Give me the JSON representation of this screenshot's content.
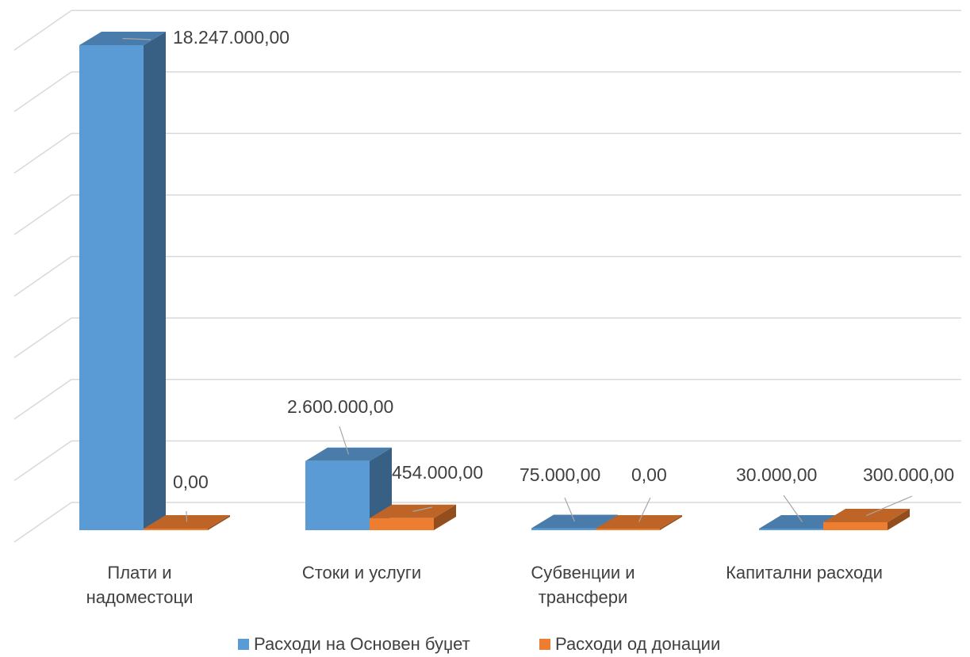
{
  "chart_data": {
    "type": "bar",
    "style": "3d-clustered-column",
    "categories": [
      [
        "Плати и",
        "надоместоци"
      ],
      [
        "Стоки и услуги"
      ],
      [
        "Субвенции и",
        "трансфери"
      ],
      [
        "Капитални расходи"
      ]
    ],
    "series": [
      {
        "name": "Расходи на Основен буџет",
        "color": "#5B9BD5",
        "values": [
          18247000,
          2600000,
          75000,
          30000
        ],
        "labels": [
          "18.247.000,00",
          "2.600.000,00",
          "75.000,00",
          "30.000,00"
        ]
      },
      {
        "name": "Расходи од донации",
        "color": "#ED7D31",
        "values": [
          0,
          454000,
          0,
          300000
        ],
        "labels": [
          "0,00",
          "454.000,00",
          "0,00",
          "300.000,00"
        ]
      }
    ],
    "ylim": [
      0,
      20000000
    ],
    "ytick_step": 2500000,
    "grid": true,
    "axis_tick_labels_visible": false,
    "legend_position": "bottom"
  }
}
